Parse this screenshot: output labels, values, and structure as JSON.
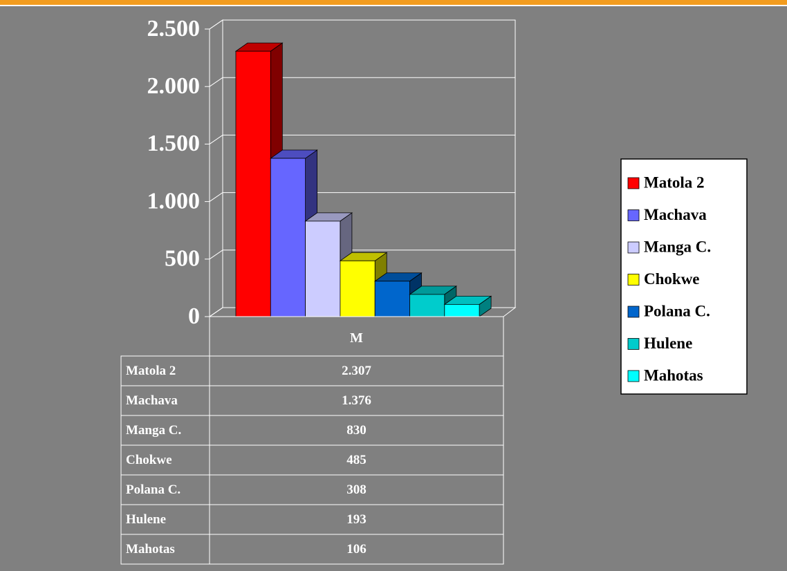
{
  "chart_data": {
    "type": "bar3d",
    "categories": [
      "M"
    ],
    "series": [
      {
        "name": "Matola 2",
        "color": "#ff0000",
        "values": [
          2307
        ],
        "value_labels": [
          "2.307"
        ]
      },
      {
        "name": "Machava",
        "color": "#6666ff",
        "values": [
          1376
        ],
        "value_labels": [
          "1.376"
        ]
      },
      {
        "name": "Manga C.",
        "color": "#ccccff",
        "values": [
          830
        ],
        "value_labels": [
          "830"
        ]
      },
      {
        "name": "Chokwe",
        "color": "#ffff00",
        "values": [
          485
        ],
        "value_labels": [
          "485"
        ]
      },
      {
        "name": "Polana C.",
        "color": "#0066cc",
        "values": [
          308
        ],
        "value_labels": [
          "308"
        ]
      },
      {
        "name": "Hulene",
        "color": "#00cccc",
        "values": [
          193
        ],
        "value_labels": [
          "193"
        ]
      },
      {
        "name": "Mahotas",
        "color": "#00ffff",
        "values": [
          106
        ],
        "value_labels": [
          "106"
        ]
      }
    ],
    "ylim": [
      0,
      2500
    ],
    "yticks": [
      0,
      500,
      {
        "value": 1000,
        "label": "1.000"
      },
      {
        "value": 1500,
        "label": "1.500"
      },
      {
        "value": 2000,
        "label": "2.000"
      },
      {
        "value": 2500,
        "label": "2.500"
      }
    ],
    "grid": true,
    "legend": "right",
    "data_table": true
  }
}
